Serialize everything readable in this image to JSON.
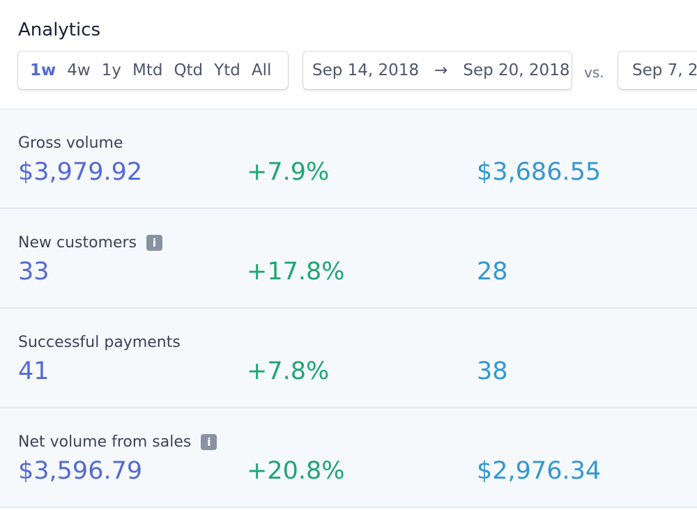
{
  "header": {
    "title": "Analytics"
  },
  "ranges": {
    "items": [
      "1w",
      "4w",
      "1y",
      "Mtd",
      "Qtd",
      "Ytd",
      "All"
    ],
    "active": "1w"
  },
  "date_range": {
    "start": "Sep 14, 2018",
    "arrow": "→",
    "end": "Sep 20, 2018"
  },
  "vs_label": "vs.",
  "compare_range": {
    "start": "Sep 7, 2"
  },
  "colors": {
    "value": "#5469d4",
    "change_positive": "#1ea672",
    "compare": "#3297d3"
  },
  "metrics": [
    {
      "label": "Gross volume",
      "value": "$3,979.92",
      "change": "+7.9%",
      "compare": "$3,686.55",
      "info": false
    },
    {
      "label": "New customers",
      "value": "33",
      "change": "+17.8%",
      "compare": "28",
      "info": true
    },
    {
      "label": "Successful payments",
      "value": "41",
      "change": "+7.8%",
      "compare": "38",
      "info": false
    },
    {
      "label": "Net volume from sales",
      "value": "$3,596.79",
      "change": "+20.8%",
      "compare": "$2,976.34",
      "info": true
    }
  ],
  "info_glyph": "i"
}
